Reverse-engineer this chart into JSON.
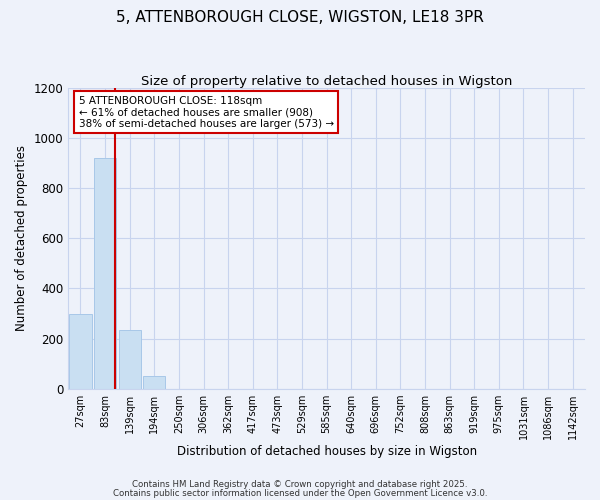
{
  "title": "5, ATTENBOROUGH CLOSE, WIGSTON, LE18 3PR",
  "subtitle": "Size of property relative to detached houses in Wigston",
  "bar_labels": [
    "27sqm",
    "83sqm",
    "139sqm",
    "194sqm",
    "250sqm",
    "306sqm",
    "362sqm",
    "417sqm",
    "473sqm",
    "529sqm",
    "585sqm",
    "640sqm",
    "696sqm",
    "752sqm",
    "808sqm",
    "863sqm",
    "919sqm",
    "975sqm",
    "1031sqm",
    "1086sqm",
    "1142sqm"
  ],
  "bar_values": [
    300,
    920,
    235,
    52,
    0,
    0,
    0,
    0,
    0,
    0,
    0,
    0,
    0,
    0,
    0,
    0,
    0,
    0,
    0,
    0,
    0
  ],
  "bar_color": "#c9dff2",
  "bar_edge_color": "#a8c8e8",
  "marker_color": "#cc0000",
  "ylim": [
    0,
    1200
  ],
  "yticks": [
    0,
    200,
    400,
    600,
    800,
    1000,
    1200
  ],
  "xlabel": "Distribution of detached houses by size in Wigston",
  "ylabel": "Number of detached properties",
  "annotation_line1": "5 ATTENBOROUGH CLOSE: 118sqm",
  "annotation_line2": "← 61% of detached houses are smaller (908)",
  "annotation_line3": "38% of semi-detached houses are larger (573) →",
  "footnote1": "Contains HM Land Registry data © Crown copyright and database right 2025.",
  "footnote2": "Contains public sector information licensed under the Open Government Licence v3.0.",
  "bg_color": "#eef2fa",
  "grid_color": "#c8d4ee",
  "title_fontsize": 11,
  "subtitle_fontsize": 9.5
}
